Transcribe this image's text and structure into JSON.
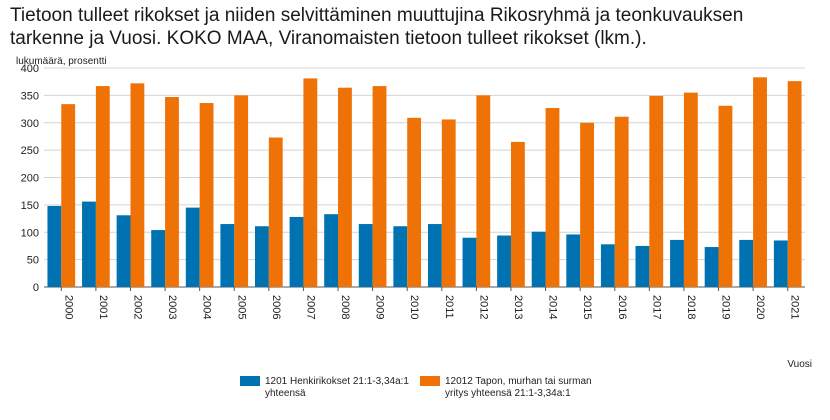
{
  "chart_data": {
    "type": "bar",
    "title": "Tietoon tulleet rikokset ja niiden selvittäminen muuttujina Rikosryhmä ja teonkuvauksen tarkenne ja Vuosi. KOKO MAA, Viranomaisten tietoon tulleet rikokset (lkm.).",
    "ylabel": "lukumäärä, prosentti",
    "xlabel": "Vuosi",
    "ylim": [
      0,
      400
    ],
    "yticks": [
      0,
      50,
      100,
      150,
      200,
      250,
      300,
      350,
      400
    ],
    "grid": true,
    "legend_position": "bottom",
    "categories": [
      "2000",
      "2001",
      "2002",
      "2003",
      "2004",
      "2005",
      "2006",
      "2007",
      "2008",
      "2009",
      "2010",
      "2011",
      "2012",
      "2013",
      "2014",
      "2015",
      "2016",
      "2017",
      "2018",
      "2019",
      "2020",
      "2021"
    ],
    "series": [
      {
        "name_line1": "1201 Henkirikokset  21:1-3,34a:1",
        "name_line2": "yhteensä",
        "color": "#0072b2",
        "values": [
          148,
          156,
          131,
          104,
          145,
          115,
          111,
          128,
          133,
          115,
          111,
          115,
          90,
          94,
          101,
          96,
          78,
          75,
          86,
          73,
          86,
          85
        ]
      },
      {
        "name_line1": "12012 Tapon, murhan tai surman",
        "name_line2": "yritys yhteensä 21:1-3,34a:1",
        "color": "#ee7205",
        "values": [
          334,
          367,
          372,
          347,
          336,
          350,
          273,
          381,
          364,
          367,
          309,
          306,
          350,
          265,
          327,
          300,
          311,
          349,
          355,
          331,
          383,
          376
        ]
      }
    ]
  }
}
